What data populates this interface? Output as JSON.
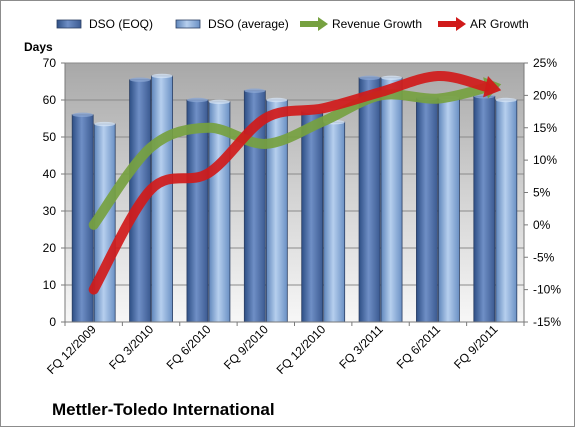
{
  "chart_data": {
    "type": "bar",
    "title": "Mettler-Toledo International",
    "ylabel": "Days",
    "ylim": [
      0,
      70
    ],
    "yticks": [
      0,
      10,
      20,
      30,
      40,
      50,
      60,
      70
    ],
    "y2lim": [
      -15,
      25
    ],
    "y2ticks": [
      "-15%",
      "-10%",
      "-5%",
      "0%",
      "5%",
      "10%",
      "15%",
      "20%",
      "25%"
    ],
    "categories": [
      "FQ 12/2009",
      "FQ 3/2010",
      "FQ 6/2010",
      "FQ 9/2010",
      "FQ 12/2010",
      "FQ 3/2011",
      "FQ 6/2011",
      "FQ 9/2011"
    ],
    "grid": true,
    "legend": "top",
    "series": [
      {
        "name": "DSO (EOQ)",
        "kind": "bar",
        "axis": "left",
        "color": "#4a6aa0",
        "values": [
          56,
          65.5,
          60,
          62.5,
          57,
          66,
          60.5,
          61
        ]
      },
      {
        "name": "DSO (average)",
        "kind": "bar",
        "axis": "left",
        "color": "#8fb2da",
        "values": [
          53.5,
          66.5,
          59.5,
          60,
          54,
          66,
          60.5,
          60
        ]
      },
      {
        "name": "Revenue Growth",
        "kind": "line",
        "axis": "right",
        "unit": "%",
        "color": "#76a140",
        "values": [
          0,
          12,
          15,
          12.5,
          16,
          20,
          19.5,
          21.5
        ]
      },
      {
        "name": "AR Growth",
        "kind": "line",
        "axis": "right",
        "unit": "%",
        "color": "#d01a1a",
        "values": [
          -10,
          5.5,
          8,
          16.5,
          18,
          20.5,
          23,
          21
        ]
      }
    ]
  }
}
